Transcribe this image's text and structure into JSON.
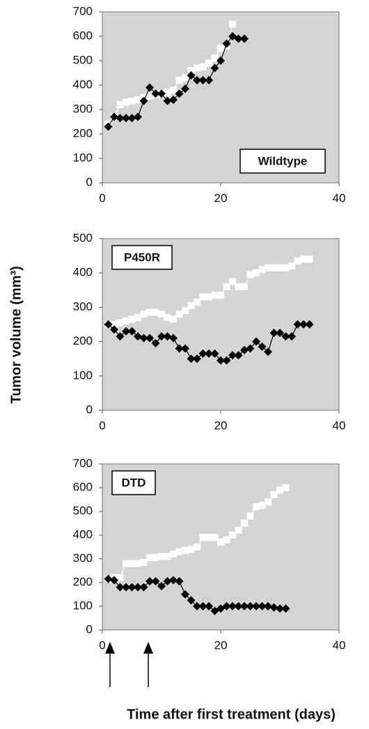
{
  "ylabel": "Tumor volume (mm³)",
  "xlabel": "Time after first treatment (days)",
  "chart_data": [
    {
      "type": "line",
      "label": "Wildtype",
      "label_position": "lower right",
      "x": [
        1,
        2,
        3,
        4,
        5,
        6,
        7,
        8,
        9,
        10,
        11,
        12,
        13,
        14,
        15,
        16,
        17,
        18,
        19,
        20,
        21,
        22,
        23,
        24
      ],
      "series": [
        {
          "color": "#ffffff",
          "marker": "square",
          "values": [
            240,
            270,
            320,
            330,
            335,
            340,
            350,
            355,
            360,
            365,
            370,
            380,
            420,
            430,
            460,
            470,
            475,
            490,
            510,
            550,
            560,
            650,
            null,
            null
          ]
        },
        {
          "color": "#000000",
          "marker": "diamond",
          "values": [
            230,
            270,
            265,
            265,
            265,
            270,
            335,
            390,
            365,
            365,
            335,
            340,
            365,
            385,
            440,
            420,
            420,
            420,
            470,
            500,
            570,
            600,
            590,
            590
          ]
        }
      ],
      "xlim": [
        0,
        40
      ],
      "xticks": [
        0,
        20,
        40
      ],
      "ylim": [
        0,
        700
      ],
      "yticks": [
        0,
        100,
        200,
        300,
        400,
        500,
        600,
        700
      ],
      "grid": false
    },
    {
      "type": "line",
      "label": "P450R",
      "label_position": "upper left",
      "x": [
        1,
        2,
        3,
        4,
        5,
        6,
        7,
        8,
        9,
        10,
        11,
        12,
        13,
        14,
        15,
        16,
        17,
        18,
        19,
        20,
        21,
        22,
        23,
        24,
        25,
        26,
        27,
        28,
        29,
        30,
        31,
        32,
        33,
        34,
        35
      ],
      "series": [
        {
          "color": "#ffffff",
          "marker": "square",
          "values": [
            250,
            250,
            255,
            260,
            265,
            270,
            280,
            285,
            285,
            280,
            270,
            265,
            280,
            290,
            305,
            315,
            330,
            330,
            335,
            335,
            360,
            375,
            360,
            360,
            395,
            400,
            410,
            415,
            415,
            415,
            415,
            420,
            435,
            440,
            440
          ]
        },
        {
          "color": "#000000",
          "marker": "diamond",
          "values": [
            250,
            235,
            215,
            230,
            230,
            215,
            210,
            210,
            195,
            215,
            215,
            210,
            180,
            180,
            150,
            150,
            165,
            165,
            165,
            145,
            145,
            160,
            160,
            175,
            180,
            200,
            185,
            170,
            225,
            225,
            215,
            215,
            250,
            250,
            250
          ]
        }
      ],
      "xlim": [
        0,
        40
      ],
      "xticks": [
        0,
        20,
        40
      ],
      "ylim": [
        0,
        500
      ],
      "yticks": [
        0,
        100,
        200,
        300,
        400,
        500
      ],
      "grid": false
    },
    {
      "type": "line",
      "label": "DTD",
      "label_position": "upper left",
      "x": [
        1,
        2,
        3,
        4,
        5,
        6,
        7,
        8,
        9,
        10,
        11,
        12,
        13,
        14,
        15,
        16,
        17,
        18,
        19,
        20,
        21,
        22,
        23,
        24,
        25,
        26,
        27,
        28,
        29,
        30,
        31
      ],
      "series": [
        {
          "color": "#ffffff",
          "marker": "square",
          "values": [
            215,
            220,
            220,
            280,
            280,
            280,
            285,
            305,
            305,
            310,
            310,
            320,
            330,
            335,
            340,
            350,
            390,
            390,
            390,
            370,
            380,
            400,
            420,
            450,
            480,
            520,
            525,
            540,
            570,
            590,
            600
          ]
        },
        {
          "color": "#000000",
          "marker": "diamond",
          "values": [
            215,
            210,
            180,
            180,
            180,
            180,
            180,
            205,
            205,
            185,
            205,
            210,
            205,
            150,
            125,
            100,
            100,
            100,
            80,
            90,
            100,
            100,
            100,
            100,
            100,
            100,
            100,
            100,
            95,
            90,
            90
          ]
        }
      ],
      "xlim": [
        0,
        40
      ],
      "xticks": [
        0,
        20,
        40
      ],
      "ylim": [
        0,
        700
      ],
      "yticks": [
        0,
        100,
        200,
        300,
        400,
        500,
        600,
        700
      ],
      "grid": false
    }
  ]
}
